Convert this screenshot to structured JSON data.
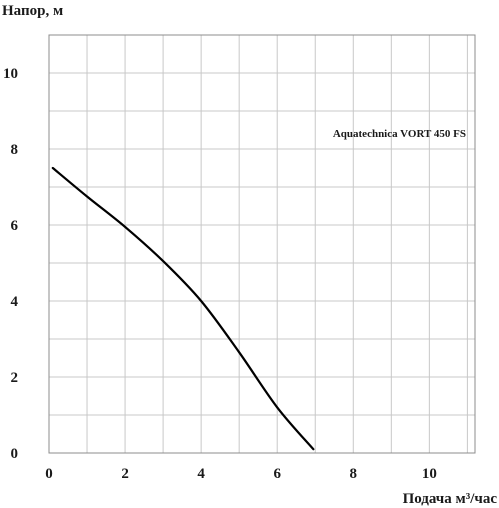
{
  "chart_data": {
    "type": "line",
    "ylabel": "Напор, м",
    "xlabel": "Подача  м³/час",
    "xlim": [
      0,
      11.2
    ],
    "ylim": [
      0,
      11
    ],
    "x_ticks": [
      0,
      2,
      4,
      6,
      8,
      10
    ],
    "y_ticks": [
      0,
      2,
      4,
      6,
      8,
      10
    ],
    "grid": true,
    "series": [
      {
        "name": "Aquatechnica VORT 450 FS",
        "color": "#000000",
        "x": [
          0.1,
          1.0,
          2.0,
          3.0,
          4.0,
          5.0,
          6.0,
          6.95
        ],
        "y": [
          7.5,
          6.75,
          5.95,
          5.05,
          4.0,
          2.65,
          1.2,
          0.1
        ]
      }
    ]
  }
}
